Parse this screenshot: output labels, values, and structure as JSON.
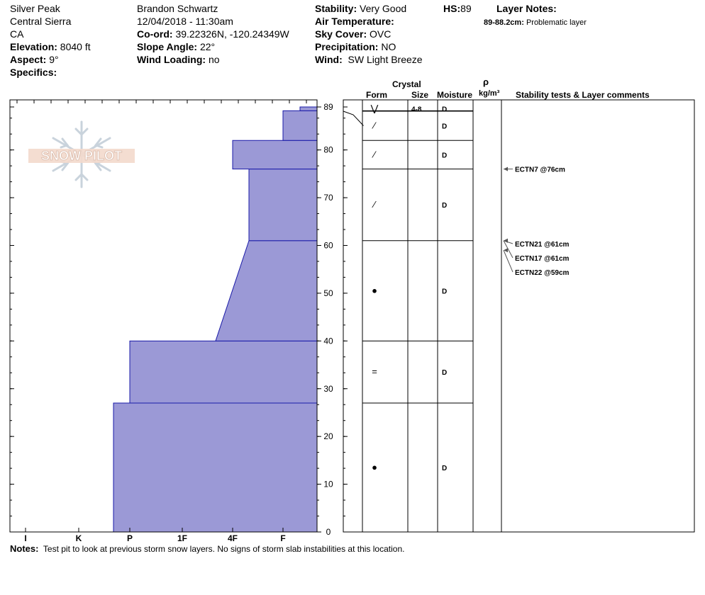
{
  "header": {
    "location": "Silver Peak",
    "range": "Central Sierra",
    "state": "CA",
    "elevation_label": "Elevation:",
    "elevation": "8040 ft",
    "aspect_label": "Aspect:",
    "aspect": "9°",
    "specifics_label": "Specifics:",
    "observer": "Brandon Schwartz",
    "datetime": "12/04/2018 - 11:30am",
    "coord_label": "Co-ord:",
    "coord": "39.22326N, -120.24349W",
    "slope_label": "Slope Angle:",
    "slope": "22°",
    "wind_loading_label": "Wind Loading:",
    "wind_loading": "no",
    "stability_label": "Stability:",
    "stability": "Very Good",
    "air_temp_label": "Air Temperature:",
    "sky_label": "Sky Cover:",
    "sky": "OVC",
    "precip_label": "Precipitation:",
    "precip": "NO",
    "wind_label": "Wind:",
    "wind": "SW Light Breeze",
    "hs_label": "HS:",
    "hs": "89",
    "layer_notes_label": "Layer Notes:",
    "layer_note_range": "89-88.2cm:",
    "layer_note_text": "Problematic layer"
  },
  "logo": {
    "text": "SNOW PILOT"
  },
  "columns": {
    "crystal": "Crystal",
    "form": "Form",
    "size": "Size",
    "moisture": "Moisture",
    "rho": "ρ",
    "density_unit": "kg/m³",
    "comments": "Stability tests & Layer comments"
  },
  "colors": {
    "hardness_fill": "#9b99d6",
    "hardness_stroke": "#1a1aa8",
    "arrow": "#555555"
  },
  "chart_data": {
    "type": "snow-profile",
    "ylim": [
      0,
      89
    ],
    "y_ticks": [
      0,
      10,
      20,
      30,
      40,
      50,
      60,
      70,
      80,
      89
    ],
    "hardness_scale": [
      "I",
      "K",
      "P",
      "1F",
      "4F",
      "F"
    ],
    "hardness_layers": [
      {
        "bottom": 0,
        "top": 27,
        "hardness": "P-"
      },
      {
        "bottom": 27,
        "top": 40,
        "hardness": "P"
      },
      {
        "bottom": 40,
        "top": 61,
        "hardness_bottom": "1F+",
        "hardness_top": "4F+"
      },
      {
        "bottom": 61,
        "top": 76,
        "hardness": "4F+"
      },
      {
        "bottom": 76,
        "top": 82,
        "hardness": "4F"
      },
      {
        "bottom": 82,
        "top": 88.2,
        "hardness": "F"
      },
      {
        "bottom": 88.2,
        "top": 89,
        "hardness": "F+"
      }
    ],
    "layers": [
      {
        "bottom": 88.2,
        "top": 89,
        "form": "⋁",
        "size": "4-8",
        "moisture": "D"
      },
      {
        "bottom": 82,
        "top": 88.2,
        "form": "⁄",
        "size": "",
        "moisture": "D"
      },
      {
        "bottom": 76,
        "top": 82,
        "form": "⁄",
        "size": "",
        "moisture": "D"
      },
      {
        "bottom": 61,
        "top": 76,
        "form": "⁄",
        "size": "",
        "moisture": "D"
      },
      {
        "bottom": 40,
        "top": 61,
        "form": "●",
        "size": "",
        "moisture": "D"
      },
      {
        "bottom": 27,
        "top": 40,
        "form": "=",
        "size": "",
        "moisture": "D"
      },
      {
        "bottom": 0,
        "top": 27,
        "form": "●",
        "size": "",
        "moisture": "D"
      }
    ],
    "tests": [
      {
        "label": "ECTN7 @76cm",
        "depth": 76
      },
      {
        "label": "ECTN21 @61cm",
        "depth": 61
      },
      {
        "label": "ECTN17 @61cm",
        "depth": 61
      },
      {
        "label": "ECTN22 @59cm",
        "depth": 59
      }
    ]
  },
  "notes": {
    "label": "Notes:",
    "text": "Test pit to look at previous storm snow layers.  No signs of storm slab instabilities at this location."
  }
}
